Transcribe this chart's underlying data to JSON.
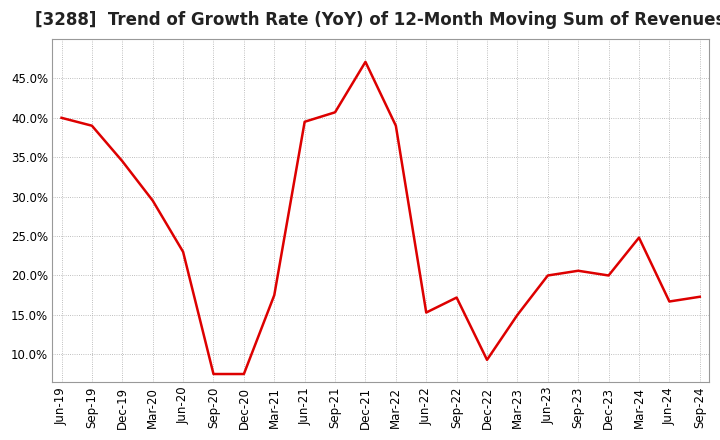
{
  "title": "[3288]  Trend of Growth Rate (YoY) of 12-Month Moving Sum of Revenues",
  "title_fontsize": 12,
  "line_color": "#dd0000",
  "background_color": "#ffffff",
  "plot_bg_color": "#ffffff",
  "grid_color": "#aaaaaa",
  "ylim": [
    0.065,
    0.5
  ],
  "yticks": [
    0.1,
    0.15,
    0.2,
    0.25,
    0.3,
    0.35,
    0.4,
    0.45
  ],
  "x_labels": [
    "Jun-19",
    "Sep-19",
    "Dec-19",
    "Mar-20",
    "Jun-20",
    "Sep-20",
    "Dec-20",
    "Mar-21",
    "Jun-21",
    "Sep-21",
    "Dec-21",
    "Mar-22",
    "Jun-22",
    "Sep-22",
    "Dec-22",
    "Mar-23",
    "Jun-23",
    "Sep-23",
    "Dec-23",
    "Mar-24",
    "Jun-24",
    "Sep-24"
  ],
  "y_values": [
    0.4,
    0.39,
    0.345,
    0.295,
    0.23,
    0.075,
    0.075,
    0.175,
    0.395,
    0.407,
    0.471,
    0.39,
    0.153,
    0.172,
    0.093,
    0.15,
    0.2,
    0.206,
    0.2,
    0.248,
    0.167,
    0.173
  ]
}
